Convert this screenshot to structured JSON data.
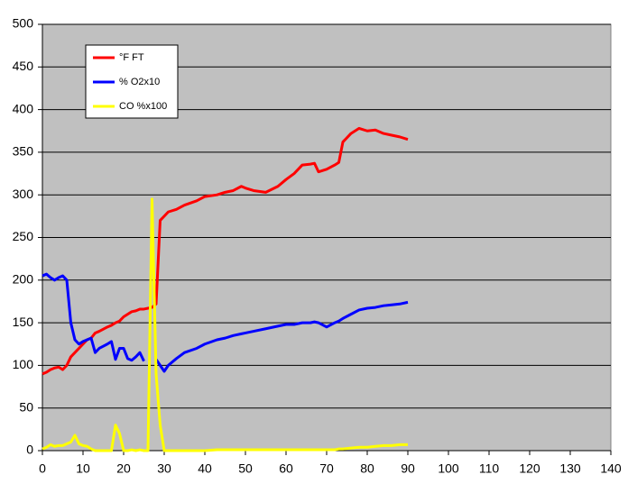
{
  "chart_data": {
    "type": "line",
    "x": [
      0,
      1,
      2,
      3,
      4,
      5,
      6,
      7,
      8,
      9,
      10,
      11,
      12,
      13,
      14,
      16,
      17,
      18,
      19,
      20,
      21,
      22,
      23,
      24,
      25,
      26,
      27,
      28,
      29,
      30,
      31,
      33,
      35,
      38,
      40,
      43,
      45,
      47,
      49,
      50,
      52,
      55,
      58,
      60,
      62,
      64,
      66,
      67,
      68,
      70,
      72,
      73,
      74,
      76,
      78,
      80,
      82,
      84,
      86,
      88,
      90
    ],
    "series": [
      {
        "name": "°F FT",
        "color": "#ff0000",
        "values": [
          90,
          92,
          95,
          97,
          98,
          95,
          100,
          110,
          115,
          120,
          125,
          130,
          132,
          138,
          140,
          145,
          147,
          150,
          152,
          157,
          160,
          163,
          164,
          166,
          166,
          167,
          168,
          172,
          270,
          275,
          280,
          283,
          288,
          293,
          298,
          300,
          303,
          305,
          310,
          308,
          305,
          303,
          310,
          318,
          325,
          335,
          336,
          337,
          327,
          330,
          335,
          338,
          362,
          372,
          378,
          375,
          376,
          372,
          370,
          368,
          365
        ]
      },
      {
        "name": "% O2x10",
        "color": "#0000ff",
        "values": [
          205,
          207,
          203,
          200,
          203,
          205,
          200,
          150,
          130,
          125,
          128,
          130,
          132,
          115,
          120,
          125,
          128,
          107,
          120,
          120,
          108,
          106,
          110,
          115,
          105,
          null,
          null,
          107,
          100,
          93,
          100,
          108,
          115,
          120,
          125,
          130,
          132,
          135,
          137,
          138,
          140,
          143,
          146,
          148,
          148,
          150,
          150,
          151,
          150,
          145,
          150,
          152,
          155,
          160,
          165,
          167,
          168,
          170,
          171,
          172,
          174
        ]
      },
      {
        "name": "CO %x100",
        "color": "#ffff00",
        "values": [
          2,
          4,
          7,
          5,
          6,
          6,
          8,
          10,
          18,
          8,
          6,
          5,
          2,
          0,
          0,
          0,
          0,
          30,
          20,
          0,
          0,
          1,
          0,
          1,
          0,
          0,
          295,
          90,
          30,
          0,
          0,
          0,
          0,
          0,
          0,
          1,
          1,
          1,
          1,
          1,
          1,
          1,
          1,
          1,
          1,
          1,
          1,
          1,
          1,
          1,
          1,
          2,
          2,
          3,
          4,
          4,
          5,
          6,
          6,
          7,
          7
        ]
      }
    ],
    "xlim": [
      0,
      140
    ],
    "xticks": [
      0,
      10,
      20,
      30,
      40,
      50,
      60,
      70,
      80,
      90,
      100,
      110,
      120,
      130,
      140
    ],
    "ylim": [
      0,
      500
    ],
    "yticks": [
      0,
      50,
      100,
      150,
      200,
      250,
      300,
      350,
      400,
      450,
      500
    ],
    "grid": true,
    "legend": "top-left",
    "background": "#c0c0c0"
  }
}
